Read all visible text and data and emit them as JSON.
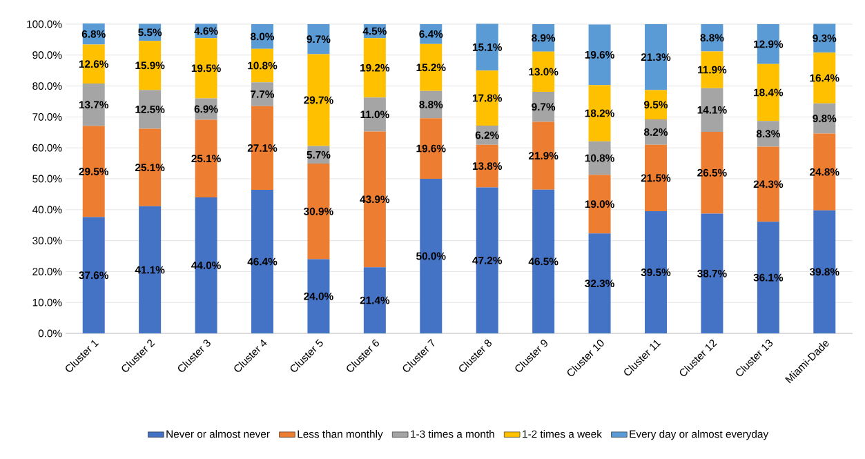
{
  "chart_data": {
    "type": "bar",
    "stacked": true,
    "categories": [
      "Cluster 1",
      "Cluster 2",
      "Cluster 3",
      "Cluster 4",
      "Cluster 5",
      "Cluster 6",
      "Cluster 7",
      "Cluster 8",
      "Cluster 9",
      "Cluster 10",
      "Cluster 11",
      "Cluster 12",
      "Cluster 13",
      "Miami-Dade"
    ],
    "series": [
      {
        "name": "Never or almost never",
        "color": "#4472c4",
        "values": [
          37.6,
          41.1,
          44.0,
          46.4,
          24.0,
          21.4,
          50.0,
          47.2,
          46.5,
          32.3,
          39.5,
          38.7,
          36.1,
          39.8
        ],
        "value_labels": [
          "37.6%",
          "41.1%",
          "44.0%",
          "46.4%",
          "24.0%",
          "21.4%",
          "50.0%",
          "47.2%",
          "46.5%",
          "32.3%",
          "39.5%",
          "38.7%",
          "36.1%",
          "39.8%"
        ]
      },
      {
        "name": "Less than monthly",
        "color": "#ed7d31",
        "values": [
          29.5,
          25.1,
          25.1,
          27.1,
          30.9,
          43.9,
          19.6,
          13.8,
          21.9,
          19.0,
          21.5,
          26.5,
          24.3,
          24.8
        ],
        "value_labels": [
          "29.5%",
          "25.1%",
          "25.1%",
          "27.1%",
          "30.9%",
          "43.9%",
          "19.6%",
          "13.8%",
          "21.9%",
          "19.0%",
          "21.5%",
          "26.5%",
          "24.3%",
          "24.8%"
        ]
      },
      {
        "name": "1-3 times a month",
        "color": "#a5a5a5",
        "values": [
          13.7,
          12.5,
          6.9,
          7.7,
          5.7,
          11.0,
          8.8,
          6.2,
          9.7,
          10.8,
          8.2,
          14.1,
          8.3,
          9.8
        ],
        "value_labels": [
          "13.7%",
          "12.5%",
          "6.9%",
          "7.7%",
          "5.7%",
          "11.0%",
          "8.8%",
          "6.2%",
          "9.7%",
          "10.8%",
          "8.2%",
          "14.1%",
          "8.3%",
          "9.8%"
        ]
      },
      {
        "name": "1-2 times a week",
        "color": "#ffc000",
        "values": [
          12.6,
          15.9,
          19.5,
          10.8,
          29.7,
          19.2,
          15.2,
          17.8,
          13.0,
          18.2,
          9.5,
          11.9,
          18.4,
          16.4
        ],
        "value_labels": [
          "12.6%",
          "15.9%",
          "19.5%",
          "10.8%",
          "29.7%",
          "19.2%",
          "15.2%",
          "17.8%",
          "13.0%",
          "18.2%",
          "9.5%",
          "11.9%",
          "18.4%",
          "16.4%"
        ]
      },
      {
        "name": "Every day or almost everyday",
        "color": "#5b9bd5",
        "values": [
          6.8,
          5.5,
          4.6,
          8.0,
          9.7,
          4.5,
          6.4,
          15.1,
          8.9,
          19.6,
          21.3,
          8.8,
          12.9,
          9.3
        ],
        "value_labels": [
          "6.8%",
          "5.5%",
          "4.6%",
          "8.0%",
          "9.7%",
          "4.5%",
          "6.4%",
          "15.1%",
          "8.9%",
          "19.6%",
          "21.3%",
          "8.8%",
          "12.9%",
          "9.3%"
        ]
      }
    ],
    "ylim": [
      0,
      100
    ],
    "yticks": [
      {
        "value": 0,
        "label": "0.0%"
      },
      {
        "value": 10,
        "label": "10.0%"
      },
      {
        "value": 20,
        "label": "20.0%"
      },
      {
        "value": 30,
        "label": "30.0%"
      },
      {
        "value": 40,
        "label": "40.0%"
      },
      {
        "value": 50,
        "label": "50.0%"
      },
      {
        "value": 60,
        "label": "60.0%"
      },
      {
        "value": 70,
        "label": "70.0%"
      },
      {
        "value": 80,
        "label": "80.0%"
      },
      {
        "value": 90,
        "label": "90.0%"
      },
      {
        "value": 100,
        "label": "100.0%"
      }
    ],
    "grid": "y",
    "legend": "bottom"
  }
}
